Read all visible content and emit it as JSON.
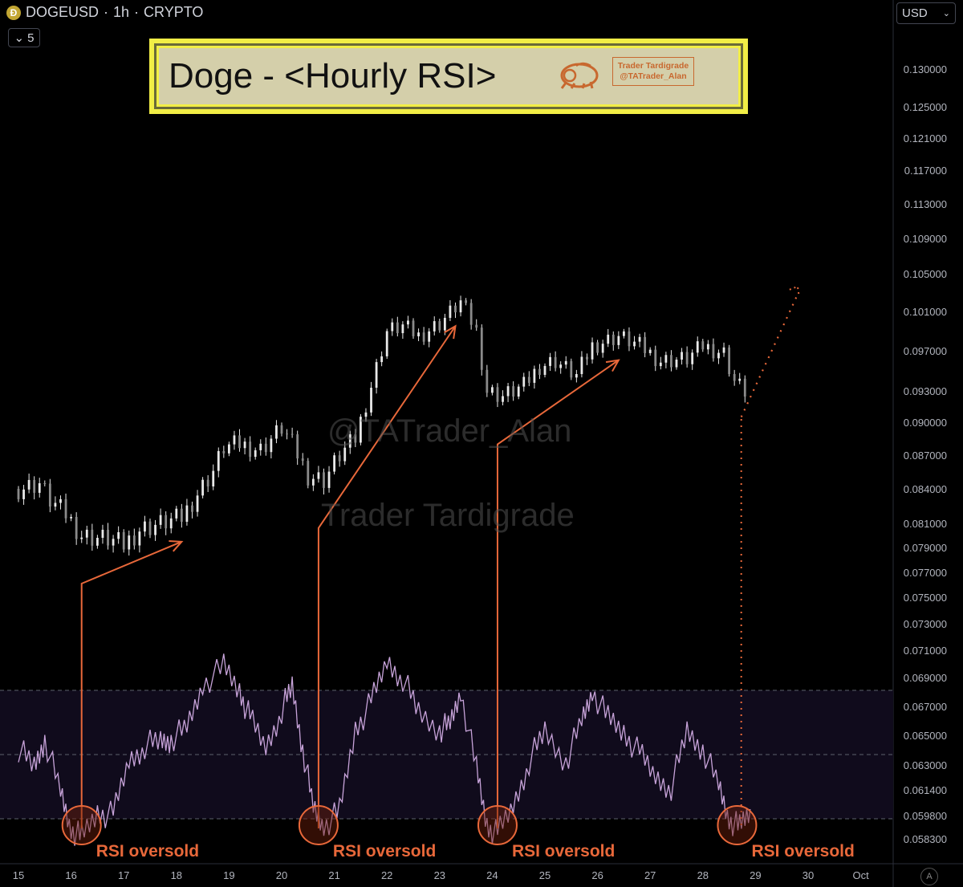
{
  "header": {
    "symbol": "DOGEUSD",
    "interval": "1h",
    "market": "CRYPTO",
    "collapse_count": "5"
  },
  "currency": {
    "selected": "USD"
  },
  "banner": {
    "title": "Doge - <Hourly RSI>",
    "brand_name": "Trader Tardigrade",
    "brand_handle": "@TATrader_Alan"
  },
  "watermarks": {
    "handle": "@TATrader_Alan",
    "name": "Trader Tardigrade"
  },
  "auto_label": "A",
  "colors": {
    "accent": "#e8683a",
    "rsi_line": "#c7a3d9",
    "rsi_band": "#100b1c",
    "candle": "#e8e8e8"
  },
  "chart_data": {
    "type": "candlestick",
    "title": "Doge - <Hourly RSI>",
    "x_tick_labels": [
      "15",
      "16",
      "17",
      "18",
      "19",
      "20",
      "21",
      "22",
      "23",
      "24",
      "25",
      "26",
      "27",
      "28",
      "29",
      "30",
      "Oct"
    ],
    "y_tick_labels": [
      "0.130000",
      "0.125000",
      "0.121000",
      "0.117000",
      "0.113000",
      "0.109000",
      "0.105000",
      "0.101000",
      "0.097000",
      "0.093000",
      "0.090000",
      "0.087000",
      "0.084000",
      "0.081000",
      "0.079000",
      "0.077000",
      "0.075000",
      "0.073000",
      "0.071000",
      "0.069000",
      "0.067000",
      "0.065000",
      "0.063000",
      "0.061400",
      "0.059800",
      "0.058300"
    ],
    "price_path": [
      {
        "day": 15.0,
        "price": 0.084
      },
      {
        "day": 15.4,
        "price": 0.0845
      },
      {
        "day": 15.6,
        "price": 0.083
      },
      {
        "day": 15.9,
        "price": 0.0818
      },
      {
        "day": 16.2,
        "price": 0.08
      },
      {
        "day": 16.5,
        "price": 0.0798
      },
      {
        "day": 16.7,
        "price": 0.0797
      },
      {
        "day": 17.0,
        "price": 0.0792
      },
      {
        "day": 17.3,
        "price": 0.0805
      },
      {
        "day": 17.7,
        "price": 0.081
      },
      {
        "day": 18.1,
        "price": 0.0815
      },
      {
        "day": 18.4,
        "price": 0.0836
      },
      {
        "day": 18.7,
        "price": 0.0856
      },
      {
        "day": 18.9,
        "price": 0.0877
      },
      {
        "day": 19.2,
        "price": 0.088
      },
      {
        "day": 19.6,
        "price": 0.0875
      },
      {
        "day": 20.0,
        "price": 0.0895
      },
      {
        "day": 20.2,
        "price": 0.088
      },
      {
        "day": 20.5,
        "price": 0.0852
      },
      {
        "day": 20.8,
        "price": 0.0848
      },
      {
        "day": 21.1,
        "price": 0.087
      },
      {
        "day": 21.4,
        "price": 0.0885
      },
      {
        "day": 21.7,
        "price": 0.0935
      },
      {
        "day": 22.0,
        "price": 0.099
      },
      {
        "day": 22.3,
        "price": 0.0995
      },
      {
        "day": 22.6,
        "price": 0.0985
      },
      {
        "day": 23.0,
        "price": 0.0998
      },
      {
        "day": 23.4,
        "price": 0.102
      },
      {
        "day": 23.7,
        "price": 0.099
      },
      {
        "day": 23.9,
        "price": 0.093
      },
      {
        "day": 24.2,
        "price": 0.0925
      },
      {
        "day": 24.6,
        "price": 0.0935
      },
      {
        "day": 24.9,
        "price": 0.0955
      },
      {
        "day": 25.2,
        "price": 0.096
      },
      {
        "day": 25.6,
        "price": 0.0945
      },
      {
        "day": 25.9,
        "price": 0.0975
      },
      {
        "day": 26.4,
        "price": 0.0985
      },
      {
        "day": 26.8,
        "price": 0.0975
      },
      {
        "day": 27.2,
        "price": 0.096
      },
      {
        "day": 27.7,
        "price": 0.0962
      },
      {
        "day": 28.0,
        "price": 0.0975
      },
      {
        "day": 28.4,
        "price": 0.0968
      },
      {
        "day": 28.6,
        "price": 0.094
      },
      {
        "day": 28.8,
        "price": 0.093
      }
    ],
    "projection": [
      {
        "day": 28.73,
        "price": 0.0905
      },
      {
        "day": 29.8,
        "price": 0.1028
      }
    ],
    "rsi": {
      "overbought": 70,
      "middle": 50,
      "oversold": 30,
      "points": [
        {
          "day": 15.0,
          "rsi": 52
        },
        {
          "day": 15.3,
          "rsi": 46
        },
        {
          "day": 15.5,
          "rsi": 55
        },
        {
          "day": 15.8,
          "rsi": 38
        },
        {
          "day": 16.0,
          "rsi": 27
        },
        {
          "day": 16.2,
          "rsi": 24
        },
        {
          "day": 16.5,
          "rsi": 32
        },
        {
          "day": 16.8,
          "rsi": 31
        },
        {
          "day": 17.1,
          "rsi": 48
        },
        {
          "day": 17.4,
          "rsi": 53
        },
        {
          "day": 17.7,
          "rsi": 54
        },
        {
          "day": 17.9,
          "rsi": 55
        },
        {
          "day": 18.2,
          "rsi": 58
        },
        {
          "day": 18.5,
          "rsi": 72
        },
        {
          "day": 18.9,
          "rsi": 77
        },
        {
          "day": 19.2,
          "rsi": 70
        },
        {
          "day": 19.4,
          "rsi": 61
        },
        {
          "day": 19.7,
          "rsi": 52
        },
        {
          "day": 20.0,
          "rsi": 64
        },
        {
          "day": 20.2,
          "rsi": 71
        },
        {
          "day": 20.4,
          "rsi": 52
        },
        {
          "day": 20.6,
          "rsi": 33
        },
        {
          "day": 20.8,
          "rsi": 28
        },
        {
          "day": 21.1,
          "rsi": 32
        },
        {
          "day": 21.4,
          "rsi": 58
        },
        {
          "day": 21.7,
          "rsi": 66
        },
        {
          "day": 22.0,
          "rsi": 79
        },
        {
          "day": 22.3,
          "rsi": 74
        },
        {
          "day": 22.6,
          "rsi": 63
        },
        {
          "day": 23.0,
          "rsi": 58
        },
        {
          "day": 23.2,
          "rsi": 59
        },
        {
          "day": 23.4,
          "rsi": 70
        },
        {
          "day": 23.7,
          "rsi": 45
        },
        {
          "day": 23.9,
          "rsi": 28
        },
        {
          "day": 24.1,
          "rsi": 25
        },
        {
          "day": 24.4,
          "rsi": 34
        },
        {
          "day": 24.7,
          "rsi": 48
        },
        {
          "day": 25.0,
          "rsi": 57
        },
        {
          "day": 25.4,
          "rsi": 48
        },
        {
          "day": 25.7,
          "rsi": 60
        },
        {
          "day": 25.9,
          "rsi": 70
        },
        {
          "day": 26.2,
          "rsi": 61
        },
        {
          "day": 26.5,
          "rsi": 57
        },
        {
          "day": 26.8,
          "rsi": 50
        },
        {
          "day": 27.1,
          "rsi": 43
        },
        {
          "day": 27.4,
          "rsi": 40
        },
        {
          "day": 27.7,
          "rsi": 57
        },
        {
          "day": 28.0,
          "rsi": 52
        },
        {
          "day": 28.3,
          "rsi": 40
        },
        {
          "day": 28.5,
          "rsi": 30
        },
        {
          "day": 28.7,
          "rsi": 27
        },
        {
          "day": 28.9,
          "rsi": 33
        }
      ]
    },
    "annotations": [
      {
        "text": "RSI oversold",
        "day": 16.2
      },
      {
        "text": "RSI oversold",
        "day": 20.7
      },
      {
        "text": "RSI oversold",
        "day": 24.1
      },
      {
        "text": "RSI oversold",
        "day": 28.65
      }
    ],
    "arrows": [
      {
        "from_day": 16.2,
        "to_day": 18.1
      },
      {
        "from_day": 20.7,
        "to_day": 23.3
      },
      {
        "from_day": 24.1,
        "to_day": 26.4
      }
    ]
  }
}
